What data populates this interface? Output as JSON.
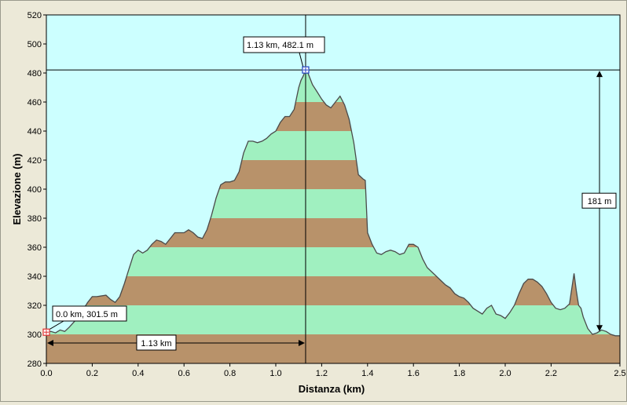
{
  "chart_data": {
    "type": "area",
    "xlabel": "Distanza  (km)",
    "ylabel": "Elevazione  (m)",
    "xlim": [
      0,
      2.5
    ],
    "ylim": [
      280,
      520
    ],
    "x_ticks": [
      "0.0",
      "0.2",
      "0.4",
      "0.6",
      "0.8",
      "1.0",
      "1.2",
      "1.4",
      "1.6",
      "1.8",
      "2.0",
      "2.2",
      "2.5"
    ],
    "x_tick_values": [
      0,
      0.2,
      0.4,
      0.6,
      0.8,
      1.0,
      1.2,
      1.4,
      1.6,
      1.8,
      2.0,
      2.2,
      2.5
    ],
    "y_ticks": [
      "280",
      "300",
      "320",
      "340",
      "360",
      "380",
      "400",
      "420",
      "440",
      "460",
      "480",
      "500",
      "520"
    ],
    "y_tick_values": [
      280,
      300,
      320,
      340,
      360,
      380,
      400,
      420,
      440,
      460,
      480,
      500,
      520
    ],
    "band_height_m": 20,
    "colors": {
      "plot_bg": "#ccffff",
      "band_brown": "#b8926a",
      "band_green": "#a0f0c0",
      "outline": "#4a4a4a",
      "crosshair": "#000000",
      "start_marker": "#e03030",
      "peak_marker": "#2040c0"
    },
    "profile": {
      "x": [
        0.0,
        0.02,
        0.04,
        0.06,
        0.08,
        0.1,
        0.14,
        0.18,
        0.2,
        0.22,
        0.26,
        0.28,
        0.3,
        0.32,
        0.34,
        0.36,
        0.38,
        0.4,
        0.42,
        0.44,
        0.46,
        0.48,
        0.5,
        0.52,
        0.54,
        0.56,
        0.58,
        0.6,
        0.62,
        0.64,
        0.66,
        0.68,
        0.7,
        0.72,
        0.74,
        0.76,
        0.78,
        0.8,
        0.82,
        0.84,
        0.86,
        0.88,
        0.9,
        0.92,
        0.94,
        0.96,
        0.98,
        1.0,
        1.02,
        1.04,
        1.06,
        1.08,
        1.1,
        1.11,
        1.12,
        1.13,
        1.14,
        1.15,
        1.16,
        1.18,
        1.2,
        1.22,
        1.24,
        1.26,
        1.28,
        1.3,
        1.32,
        1.34,
        1.36,
        1.38,
        1.39,
        1.4,
        1.42,
        1.44,
        1.46,
        1.48,
        1.5,
        1.52,
        1.54,
        1.56,
        1.58,
        1.6,
        1.62,
        1.64,
        1.66,
        1.68,
        1.7,
        1.72,
        1.74,
        1.76,
        1.78,
        1.8,
        1.82,
        1.84,
        1.86,
        1.88,
        1.9,
        1.92,
        1.94,
        1.96,
        1.98,
        2.0,
        2.02,
        2.04,
        2.06,
        2.08,
        2.1,
        2.12,
        2.14,
        2.16,
        2.18,
        2.2,
        2.22,
        2.24,
        2.26,
        2.28,
        2.3,
        2.31,
        2.32,
        2.33,
        2.34,
        2.36,
        2.38,
        2.4,
        2.42,
        2.44,
        2.46,
        2.48,
        2.5
      ],
      "y": [
        301.5,
        302,
        301,
        303,
        302,
        305,
        312,
        322,
        326,
        326,
        327,
        324,
        322,
        326,
        335,
        345,
        355,
        358,
        356,
        358,
        362,
        365,
        364,
        362,
        366,
        370,
        370,
        370,
        372,
        370,
        367,
        366,
        372,
        382,
        394,
        403,
        405,
        405,
        406,
        412,
        425,
        433,
        433,
        432,
        433,
        435,
        438,
        440,
        446,
        450,
        450,
        455,
        470,
        475,
        478,
        482.1,
        480,
        476,
        472,
        467,
        462,
        458,
        456,
        460,
        464,
        458,
        448,
        432,
        410,
        407,
        406,
        370,
        362,
        356,
        355,
        357,
        358,
        357,
        355,
        356,
        362,
        362,
        360,
        352,
        346,
        343,
        340,
        337,
        334,
        332,
        328,
        326,
        325,
        322,
        318,
        316,
        314,
        318,
        320,
        314,
        313,
        311,
        315,
        320,
        328,
        335,
        338,
        338,
        336,
        333,
        328,
        322,
        318,
        317,
        318,
        321,
        342,
        330,
        320,
        318,
        312,
        304,
        300,
        301,
        303,
        302,
        300,
        299,
        299
      ]
    },
    "start_point": {
      "x": 0.0,
      "y": 301.5,
      "label": "0.0 km, 301.5 m"
    },
    "peak_point": {
      "x": 1.13,
      "y": 482.1,
      "label": "1.13 km, 482.1 m"
    },
    "distance_label": "1.13 km",
    "elevation_gain_label": "181 m"
  }
}
